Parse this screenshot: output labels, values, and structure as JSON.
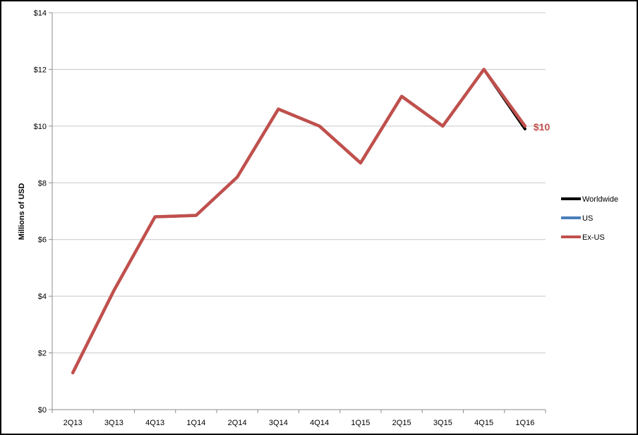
{
  "chart_data": {
    "type": "line",
    "ylabel": "Millions of USD",
    "ylim": [
      0,
      14
    ],
    "yticks": [
      0,
      2,
      4,
      6,
      8,
      10,
      12,
      14
    ],
    "ytick_labels": [
      "$0",
      "$2",
      "$4",
      "$6",
      "$8",
      "$10",
      "$12",
      "$14"
    ],
    "grid": "horizontal",
    "legend_position": "right",
    "categories": [
      "2Q13",
      "3Q13",
      "4Q13",
      "1Q14",
      "2Q14",
      "3Q14",
      "4Q14",
      "1Q15",
      "2Q15",
      "3Q15",
      "4Q15",
      "1Q16"
    ],
    "series": [
      {
        "name": "Worldwide",
        "color": "#000000",
        "values": [
          1.3,
          4.2,
          6.8,
          6.85,
          8.2,
          10.6,
          10.0,
          8.7,
          11.05,
          10.0,
          12.0,
          9.9
        ]
      },
      {
        "name": "US",
        "color": "#4a7ebb",
        "values": [
          1.3,
          4.2,
          6.8,
          6.85,
          8.2,
          10.6,
          10.0,
          8.7,
          11.05,
          10.0,
          12.0,
          10.0
        ]
      },
      {
        "name": "Ex-US",
        "color": "#c0504d",
        "values": [
          1.3,
          4.2,
          6.8,
          6.85,
          8.2,
          10.6,
          10.0,
          8.7,
          11.05,
          10.0,
          12.0,
          10.0
        ]
      }
    ],
    "annotations": [
      {
        "text": "$10",
        "color": "#c0504d",
        "series": "Ex-US",
        "category": "1Q16",
        "value": 10.0
      }
    ]
  }
}
